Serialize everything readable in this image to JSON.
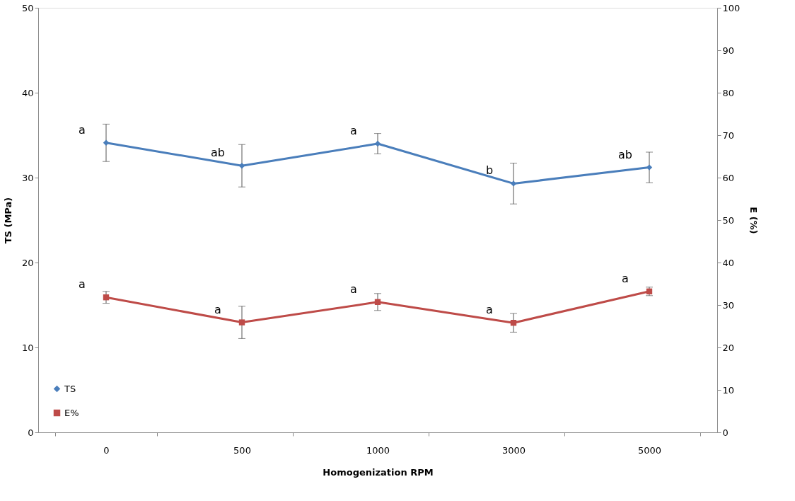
{
  "chart_data": {
    "type": "line",
    "xlabel": "Homogenization RPM",
    "ylabel": "TS (MPa)",
    "y2label": "E (%)",
    "categories": [
      "0",
      "500",
      "1000",
      "3000",
      "5000"
    ],
    "series": [
      {
        "name": "TS",
        "color": "#4a7ebb",
        "marker": "diamond",
        "values": [
          34.1,
          31.4,
          34.0,
          29.3,
          31.2
        ],
        "errors": [
          2.2,
          2.5,
          1.2,
          2.4,
          1.8
        ],
        "value_labels": [
          "a",
          "ab",
          "a",
          "b",
          "ab"
        ]
      },
      {
        "name": "E%",
        "color": "#be4b48",
        "marker": "square",
        "axis": "y2",
        "values": [
          31.8,
          25.9,
          30.7,
          25.8,
          33.2
        ],
        "errors": [
          1.4,
          3.8,
          2.0,
          2.2,
          1.0
        ],
        "value_labels": [
          "a",
          "a",
          "a",
          "a",
          "a"
        ]
      }
    ],
    "ylim": [
      0,
      50
    ],
    "yticks": [
      0,
      10,
      20,
      30,
      40,
      50
    ],
    "y2lim": [
      0,
      100
    ],
    "y2ticks": [
      0,
      10,
      20,
      30,
      40,
      50,
      60,
      70,
      80,
      90,
      100
    ],
    "grid": false,
    "legend": "bottom left"
  }
}
